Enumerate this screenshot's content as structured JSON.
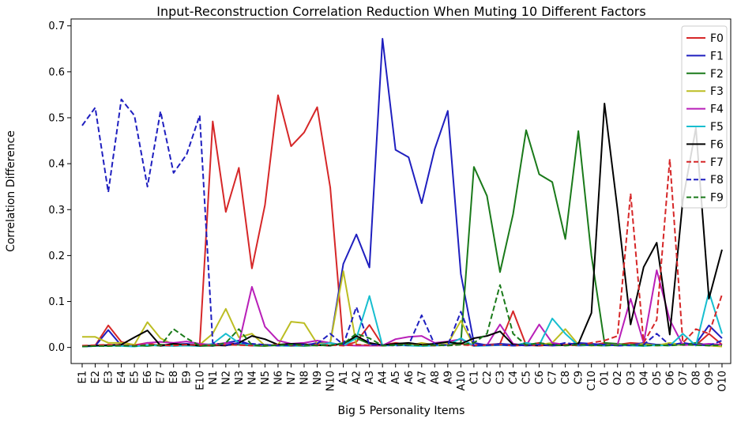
{
  "chart_data": {
    "type": "line",
    "title": "Input-Reconstruction Correlation Reduction When Muting 10 Different Factors",
    "xlabel": "Big 5 Personality Items",
    "ylabel": "Correlation Difference",
    "ylim": [
      -0.035,
      0.715
    ],
    "yticks": [
      0.0,
      0.1,
      0.2,
      0.3,
      0.4,
      0.5,
      0.6,
      0.7
    ],
    "ytick_labels": [
      "0.0",
      "0.1",
      "0.2",
      "0.3",
      "0.4",
      "0.5",
      "0.6",
      "0.7"
    ],
    "legend_position": "upper-right",
    "categories": [
      "E1",
      "E2",
      "E3",
      "E4",
      "E5",
      "E6",
      "E7",
      "E8",
      "E9",
      "E10",
      "N1",
      "N2",
      "N3",
      "N4",
      "N5",
      "N6",
      "N7",
      "N8",
      "N9",
      "N10",
      "A1",
      "A2",
      "A3",
      "A4",
      "A5",
      "A6",
      "A7",
      "A8",
      "A9",
      "A10",
      "C1",
      "C2",
      "C3",
      "C4",
      "C5",
      "C6",
      "C7",
      "C8",
      "C9",
      "C10",
      "O1",
      "O2",
      "O3",
      "O4",
      "O5",
      "O6",
      "O7",
      "O8",
      "O9",
      "O10"
    ],
    "series": [
      {
        "name": "F0",
        "color": "#d62728",
        "dash": false,
        "values": [
          0.003,
          0.004,
          0.048,
          0.012,
          0.005,
          0.01,
          0.003,
          0.005,
          0.006,
          0.004,
          0.492,
          0.295,
          0.391,
          0.172,
          0.31,
          0.549,
          0.438,
          0.468,
          0.523,
          0.348,
          0.004,
          0.012,
          0.049,
          0.005,
          0.01,
          0.006,
          0.004,
          0.005,
          0.006,
          0.008,
          0.005,
          0.006,
          0.008,
          0.079,
          0.005,
          0.01,
          0.005,
          0.006,
          0.01,
          0.004,
          0.01,
          0.006,
          0.01,
          0.008,
          0.006,
          0.006,
          0.008,
          0.005,
          0.03,
          0.006
        ]
      },
      {
        "name": "F1",
        "color": "#1f1fbf",
        "dash": false,
        "values": [
          0.002,
          0.003,
          0.038,
          0.004,
          0.003,
          0.005,
          0.004,
          0.006,
          0.008,
          0.005,
          0.003,
          0.01,
          0.015,
          0.005,
          0.006,
          0.004,
          0.008,
          0.004,
          0.01,
          0.01,
          0.182,
          0.246,
          0.174,
          0.672,
          0.43,
          0.414,
          0.314,
          0.432,
          0.515,
          0.16,
          0.01,
          0.005,
          0.008,
          0.006,
          0.004,
          0.005,
          0.004,
          0.005,
          0.01,
          0.008,
          0.006,
          0.004,
          0.005,
          0.01,
          0.006,
          0.007,
          0.006,
          0.008,
          0.048,
          0.02
        ]
      },
      {
        "name": "F2",
        "color": "#1a7a1a",
        "dash": false,
        "values": [
          0.003,
          0.004,
          0.003,
          0.005,
          0.004,
          0.003,
          0.006,
          0.004,
          0.005,
          0.003,
          0.004,
          0.005,
          0.006,
          0.004,
          0.003,
          0.005,
          0.004,
          0.003,
          0.005,
          0.004,
          0.01,
          0.02,
          0.008,
          0.004,
          0.005,
          0.006,
          0.004,
          0.005,
          0.006,
          0.01,
          0.393,
          0.33,
          0.164,
          0.29,
          0.473,
          0.377,
          0.36,
          0.236,
          0.471,
          0.2,
          0.01,
          0.008,
          0.005,
          0.006,
          0.004,
          0.005,
          0.006,
          0.01,
          0.005,
          0.006
        ]
      },
      {
        "name": "F3",
        "color": "#bcbd22",
        "dash": false,
        "values": [
          0.023,
          0.023,
          0.01,
          0.01,
          0.006,
          0.055,
          0.02,
          0.006,
          0.005,
          0.006,
          0.03,
          0.084,
          0.022,
          0.03,
          0.004,
          0.005,
          0.056,
          0.053,
          0.008,
          0.01,
          0.166,
          0.006,
          0.004,
          0.005,
          0.006,
          0.004,
          0.01,
          0.005,
          0.008,
          0.058,
          0.004,
          0.005,
          0.006,
          0.004,
          0.005,
          0.006,
          0.01,
          0.04,
          0.006,
          0.004,
          0.005,
          0.006,
          0.004,
          0.008,
          0.004,
          0.01,
          0.005,
          0.006,
          0.004,
          0.002
        ]
      },
      {
        "name": "F4",
        "color": "#b81fb8",
        "dash": false,
        "values": [
          0.003,
          0.004,
          0.005,
          0.004,
          0.003,
          0.01,
          0.012,
          0.01,
          0.013,
          0.008,
          0.006,
          0.01,
          0.008,
          0.132,
          0.045,
          0.015,
          0.008,
          0.01,
          0.015,
          0.01,
          0.005,
          0.004,
          0.004,
          0.004,
          0.018,
          0.023,
          0.025,
          0.01,
          0.013,
          0.018,
          0.004,
          0.005,
          0.05,
          0.008,
          0.004,
          0.05,
          0.01,
          0.006,
          0.004,
          0.005,
          0.004,
          0.006,
          0.106,
          0.01,
          0.168,
          0.06,
          0.005,
          0.006,
          0.008,
          0.006
        ]
      },
      {
        "name": "F5",
        "color": "#17becf",
        "dash": false,
        "values": [
          0.002,
          0.003,
          0.004,
          0.003,
          0.002,
          0.005,
          0.004,
          0.003,
          0.004,
          0.003,
          0.008,
          0.03,
          0.01,
          0.004,
          0.005,
          0.004,
          0.003,
          0.004,
          0.005,
          0.01,
          0.004,
          0.02,
          0.112,
          0.004,
          0.005,
          0.004,
          0.003,
          0.004,
          0.005,
          0.02,
          0.003,
          0.004,
          0.005,
          0.004,
          0.01,
          0.005,
          0.063,
          0.03,
          0.004,
          0.005,
          0.004,
          0.005,
          0.004,
          0.003,
          0.005,
          0.004,
          0.03,
          0.004,
          0.121,
          0.03
        ]
      },
      {
        "name": "F6",
        "color": "#000000",
        "dash": false,
        "values": [
          0.003,
          0.004,
          0.005,
          0.006,
          0.022,
          0.037,
          0.004,
          0.008,
          0.006,
          0.004,
          0.005,
          0.004,
          0.01,
          0.025,
          0.018,
          0.006,
          0.008,
          0.007,
          0.005,
          0.004,
          0.008,
          0.025,
          0.01,
          0.005,
          0.008,
          0.01,
          0.006,
          0.008,
          0.012,
          0.008,
          0.02,
          0.025,
          0.035,
          0.006,
          0.005,
          0.004,
          0.006,
          0.005,
          0.008,
          0.075,
          0.531,
          0.3,
          0.05,
          0.175,
          0.228,
          0.028,
          0.32,
          0.478,
          0.106,
          0.213
        ]
      },
      {
        "name": "F7",
        "color": "#d62728",
        "dash": true,
        "values": [
          0.004,
          0.005,
          0.006,
          0.005,
          0.004,
          0.006,
          0.005,
          0.004,
          0.006,
          0.005,
          0.005,
          0.006,
          0.005,
          0.004,
          0.005,
          0.006,
          0.004,
          0.005,
          0.006,
          0.005,
          0.004,
          0.006,
          0.005,
          0.004,
          0.005,
          0.006,
          0.005,
          0.004,
          0.005,
          0.006,
          0.004,
          0.005,
          0.006,
          0.004,
          0.005,
          0.004,
          0.005,
          0.006,
          0.004,
          0.01,
          0.015,
          0.025,
          0.335,
          0.01,
          0.06,
          0.41,
          0.01,
          0.04,
          0.03,
          0.115
        ]
      },
      {
        "name": "F8",
        "color": "#1f1fbf",
        "dash": true,
        "values": [
          0.483,
          0.522,
          0.338,
          0.54,
          0.505,
          0.35,
          0.514,
          0.38,
          0.42,
          0.505,
          0.01,
          0.005,
          0.01,
          0.008,
          0.006,
          0.004,
          0.005,
          0.006,
          0.008,
          0.03,
          0.006,
          0.088,
          0.006,
          0.005,
          0.004,
          0.005,
          0.07,
          0.006,
          0.005,
          0.078,
          0.004,
          0.005,
          0.006,
          0.004,
          0.005,
          0.006,
          0.004,
          0.01,
          0.006,
          0.005,
          0.006,
          0.004,
          0.005,
          0.006,
          0.03,
          0.005,
          0.01,
          0.006,
          0.004,
          0.015
        ]
      },
      {
        "name": "F9",
        "color": "#1a7a1a",
        "dash": true,
        "values": [
          0.002,
          0.003,
          0.003,
          0.004,
          0.003,
          0.005,
          0.004,
          0.04,
          0.02,
          0.004,
          0.004,
          0.01,
          0.04,
          0.005,
          0.004,
          0.005,
          0.006,
          0.005,
          0.004,
          0.005,
          0.008,
          0.03,
          0.02,
          0.004,
          0.005,
          0.006,
          0.004,
          0.005,
          0.004,
          0.006,
          0.01,
          0.03,
          0.136,
          0.03,
          0.005,
          0.01,
          0.005,
          0.004,
          0.006,
          0.005,
          0.004,
          0.005,
          0.006,
          0.004,
          0.005,
          0.004,
          0.006,
          0.005,
          0.004,
          0.005
        ]
      }
    ]
  }
}
